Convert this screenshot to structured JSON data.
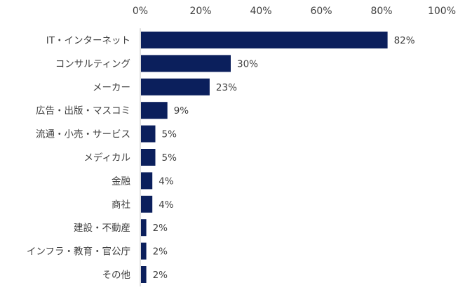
{
  "chart_data": {
    "type": "bar",
    "orientation": "horizontal",
    "title": "",
    "xlabel": "",
    "ylabel": "",
    "xlim": [
      0,
      100
    ],
    "ticks": [
      0,
      20,
      40,
      60,
      80,
      100
    ],
    "tick_labels": [
      "0%",
      "20%",
      "40%",
      "60%",
      "80%",
      "100%"
    ],
    "tick_position": "top",
    "grid": false,
    "legend": "none",
    "bar_color": "#0b1f5c",
    "categories": [
      "IT・インターネット",
      "コンサルティング",
      "メーカー",
      "広告・出版・マスコミ",
      "流通・小売・サービス",
      "メディカル",
      "金融",
      "商社",
      "建設・不動産",
      "インフラ・教育・官公庁",
      "その他"
    ],
    "values": [
      82,
      30,
      23,
      9,
      5,
      5,
      4,
      4,
      2,
      2,
      2
    ],
    "value_labels": [
      "82%",
      "30%",
      "23%",
      "9%",
      "5%",
      "5%",
      "4%",
      "4%",
      "2%",
      "2%",
      "2%"
    ]
  }
}
